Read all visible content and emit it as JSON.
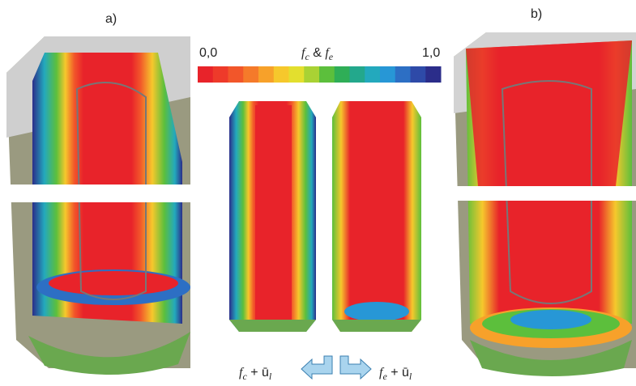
{
  "panels": {
    "a": "a)",
    "b": "b)"
  },
  "colorbar": {
    "min": "0,0",
    "max": "1,0",
    "title": [
      "f",
      "c",
      " & ",
      "f",
      "e"
    ],
    "colors": [
      "#e8232a",
      "#ee3a2a",
      "#f2562a",
      "#f57a2a",
      "#f7a12a",
      "#f6c82c",
      "#e3df2e",
      "#a9d234",
      "#5cbf3c",
      "#2fae57",
      "#23a88c",
      "#23a9bd",
      "#2797d6",
      "#2d6fc4",
      "#2e4aa8",
      "#2b2d8a"
    ]
  },
  "captions": {
    "left": [
      "f",
      "c",
      " + ū",
      "l"
    ],
    "right": [
      "f",
      "e",
      " + ū",
      "l"
    ]
  }
}
